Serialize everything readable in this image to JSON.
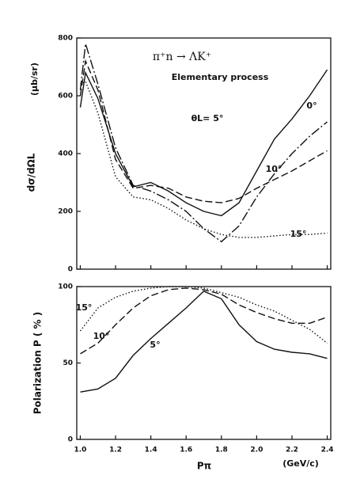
{
  "chart_data": [
    {
      "type": "line",
      "title": "π⁺n → ΛK⁺",
      "subtitle": "Elementary process",
      "ylabel": "dσ/dΩL",
      "yunit": "(μb/sr)",
      "x": [
        1.0,
        1.03,
        1.1,
        1.2,
        1.3,
        1.4,
        1.5,
        1.6,
        1.7,
        1.8,
        1.9,
        2.0,
        2.1,
        2.2,
        2.3,
        2.4
      ],
      "xlim": [
        0.98,
        2.42
      ],
      "xticks": [
        1,
        1.2,
        1.4,
        1.6,
        1.8,
        2,
        2.2,
        2.4
      ],
      "ylim": [
        0,
        800
      ],
      "yticks": [
        0,
        200,
        400,
        600,
        800
      ],
      "series": [
        {
          "name": "θL= 5°",
          "color": "#111111",
          "style": "solid",
          "values": [
            560,
            680,
            590,
            400,
            285,
            300,
            270,
            230,
            200,
            185,
            230,
            340,
            450,
            520,
            600,
            690
          ]
        },
        {
          "name": "0°",
          "color": "#111111",
          "style": "dashdot",
          "values": [
            620,
            780,
            640,
            420,
            290,
            270,
            240,
            200,
            140,
            95,
            150,
            250,
            330,
            400,
            460,
            510
          ]
        },
        {
          "name": "10°",
          "color": "#111111",
          "style": "dashed",
          "values": [
            600,
            720,
            620,
            380,
            280,
            290,
            280,
            250,
            235,
            230,
            245,
            280,
            310,
            340,
            375,
            410
          ]
        },
        {
          "name": "15°",
          "color": "#111111",
          "style": "dotted",
          "values": [
            640,
            650,
            540,
            320,
            250,
            240,
            210,
            170,
            140,
            120,
            110,
            110,
            115,
            120,
            120,
            125
          ]
        }
      ]
    },
    {
      "type": "line",
      "ylabel": "Polarization P ( % )",
      "xlabel": "Pπ",
      "xunit": "(GeV/c)",
      "x": [
        1.0,
        1.1,
        1.2,
        1.3,
        1.4,
        1.5,
        1.6,
        1.7,
        1.8,
        1.9,
        2.0,
        2.1,
        2.2,
        2.3,
        2.4
      ],
      "xlim": [
        0.98,
        2.42
      ],
      "xticks": [
        {
          "value": 1,
          "label": "1.0"
        },
        1.2,
        1.4,
        1.6,
        1.8,
        {
          "value": 2,
          "label": "2.0"
        },
        2.2,
        2.4
      ],
      "ylim": [
        0,
        100
      ],
      "yticks": [
        0,
        50,
        100
      ],
      "series": [
        {
          "name": "15°",
          "color": "#111111",
          "style": "dotted",
          "values": [
            71,
            86,
            93,
            97,
            99,
            100,
            100,
            99,
            96,
            93,
            88,
            84,
            78,
            72,
            63
          ]
        },
        {
          "name": "10°",
          "color": "#111111",
          "style": "dashed",
          "values": [
            56,
            63,
            75,
            86,
            94,
            98,
            99,
            98,
            95,
            88,
            83,
            79,
            76,
            76,
            80
          ]
        },
        {
          "name": "5°",
          "color": "#111111",
          "style": "solid",
          "values": [
            31,
            33,
            40,
            55,
            66,
            76,
            86,
            97,
            92,
            75,
            64,
            59,
            57,
            56,
            53
          ]
        }
      ]
    }
  ]
}
